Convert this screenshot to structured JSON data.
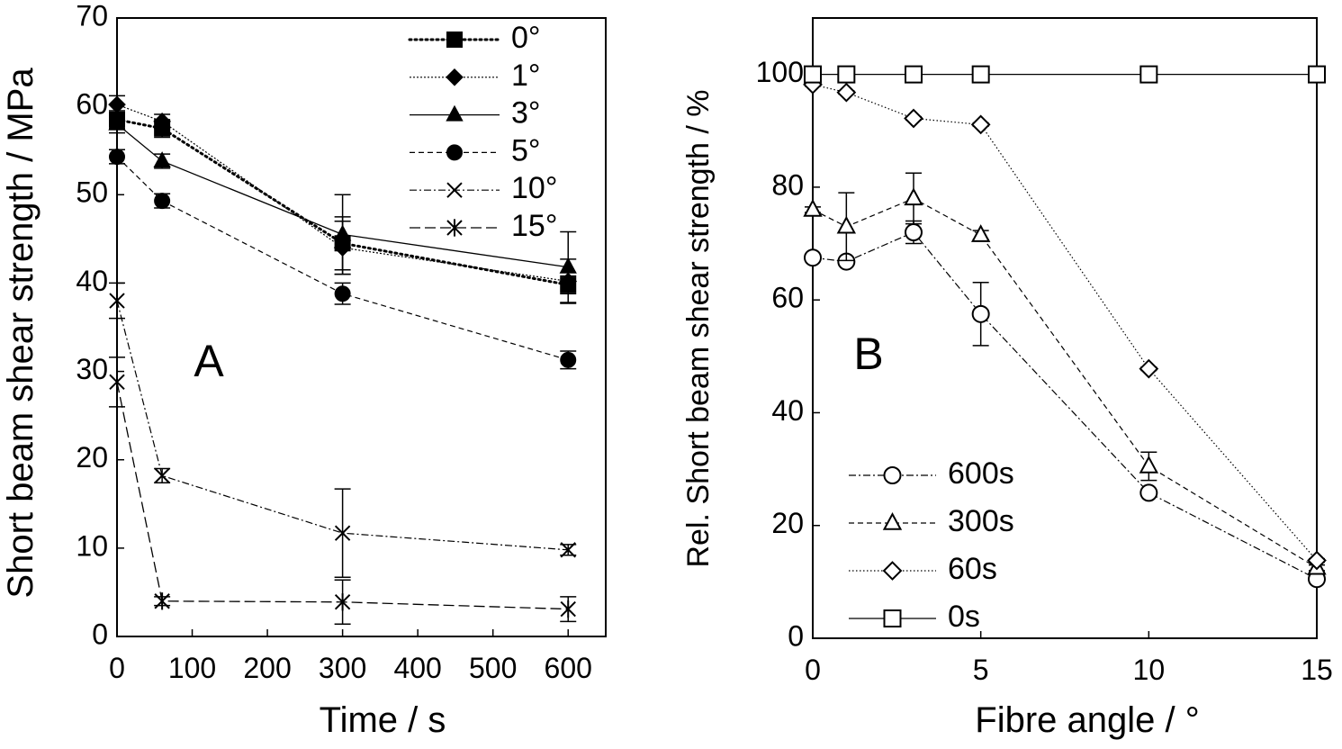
{
  "chart_data": [
    {
      "panel": "A",
      "type": "line",
      "panel_label": "A",
      "xlabel": "Time / s",
      "ylabel": "Short beam shear strength / MPa",
      "xlim": [
        0,
        650
      ],
      "ylim": [
        0,
        70
      ],
      "xticks": [
        0,
        100,
        200,
        300,
        400,
        500,
        600
      ],
      "yticks": [
        0,
        10,
        20,
        30,
        40,
        50,
        60,
        70
      ],
      "legend_position": "top-right",
      "series": [
        {
          "name": "0°",
          "marker": "filled-square",
          "line": "dot-thick",
          "x": [
            0,
            60,
            300,
            600
          ],
          "y": [
            58.5,
            57.5,
            44.5,
            39.8
          ],
          "err": [
            1.0,
            1.0,
            3.0,
            1.0
          ]
        },
        {
          "name": "1°",
          "marker": "filled-diamond",
          "line": "dot-thin",
          "x": [
            0,
            60,
            300,
            600
          ],
          "y": [
            60.2,
            58.3,
            44.0,
            40.2
          ],
          "err": [
            1.0,
            0.8,
            3.0,
            2.5
          ]
        },
        {
          "name": "3°",
          "marker": "filled-triangle",
          "line": "solid",
          "x": [
            0,
            60,
            300,
            600
          ],
          "y": [
            58.0,
            53.8,
            45.5,
            41.8
          ],
          "err": [
            1.0,
            0.8,
            4.5,
            4.0
          ]
        },
        {
          "name": "5°",
          "marker": "filled-circle",
          "line": "dashed",
          "x": [
            0,
            60,
            300,
            600
          ],
          "y": [
            54.3,
            49.3,
            38.8,
            31.3
          ],
          "err": [
            0.8,
            0.8,
            1.2,
            1.0
          ]
        },
        {
          "name": "10°",
          "marker": "x",
          "line": "dash-dot",
          "x": [
            0,
            60,
            300,
            600
          ],
          "y": [
            38.0,
            18.2,
            11.7,
            9.8
          ],
          "err": [
            2.0,
            0.8,
            5.0,
            0.6
          ]
        },
        {
          "name": "15°",
          "marker": "asterisk",
          "line": "long-dash",
          "x": [
            0,
            60,
            300,
            600
          ],
          "y": [
            28.8,
            4.0,
            3.9,
            3.1
          ],
          "err": [
            2.8,
            0.5,
            2.5,
            1.4
          ]
        }
      ]
    },
    {
      "panel": "B",
      "type": "line",
      "panel_label": "B",
      "xlabel": "Fibre angle  / °",
      "ylabel": "Rel. Short beam shear strength / %",
      "xlim": [
        0,
        15
      ],
      "ylim": [
        0,
        110
      ],
      "xticks": [
        0,
        5,
        10,
        15
      ],
      "yticks": [
        0,
        20,
        40,
        60,
        80,
        100
      ],
      "legend_position": "bottom-left",
      "series": [
        {
          "name": "600s",
          "marker": "open-circle",
          "line": "dash-dot",
          "x": [
            0,
            1,
            3,
            5,
            10,
            15
          ],
          "y": [
            67.5,
            66.8,
            72.0,
            57.5,
            25.8,
            10.5
          ],
          "err": [
            0.5,
            0.5,
            2.0,
            5.6,
            0.5,
            0.5
          ]
        },
        {
          "name": "300s",
          "marker": "open-triangle",
          "line": "dashed",
          "x": [
            0,
            1,
            3,
            5,
            10,
            15
          ],
          "y": [
            76.0,
            73.0,
            78.0,
            71.5,
            30.5,
            12.5
          ],
          "err": [
            0.5,
            6.0,
            4.5,
            0.8,
            2.5,
            0.5
          ]
        },
        {
          "name": "60s",
          "marker": "open-diamond",
          "line": "dotted",
          "x": [
            0,
            1,
            3,
            5,
            10,
            15
          ],
          "y": [
            98.2,
            96.8,
            92.2,
            91.1,
            47.8,
            13.8
          ],
          "err": [
            0.3,
            0.3,
            0.3,
            0.3,
            0.3,
            0.3
          ]
        },
        {
          "name": "0s",
          "marker": "open-square",
          "line": "solid",
          "x": [
            0,
            1,
            3,
            5,
            10,
            15
          ],
          "y": [
            100,
            100,
            100,
            100,
            100,
            100
          ],
          "err": [
            0.4,
            0.4,
            0.4,
            0.4,
            1.0,
            0.4
          ]
        }
      ]
    }
  ]
}
